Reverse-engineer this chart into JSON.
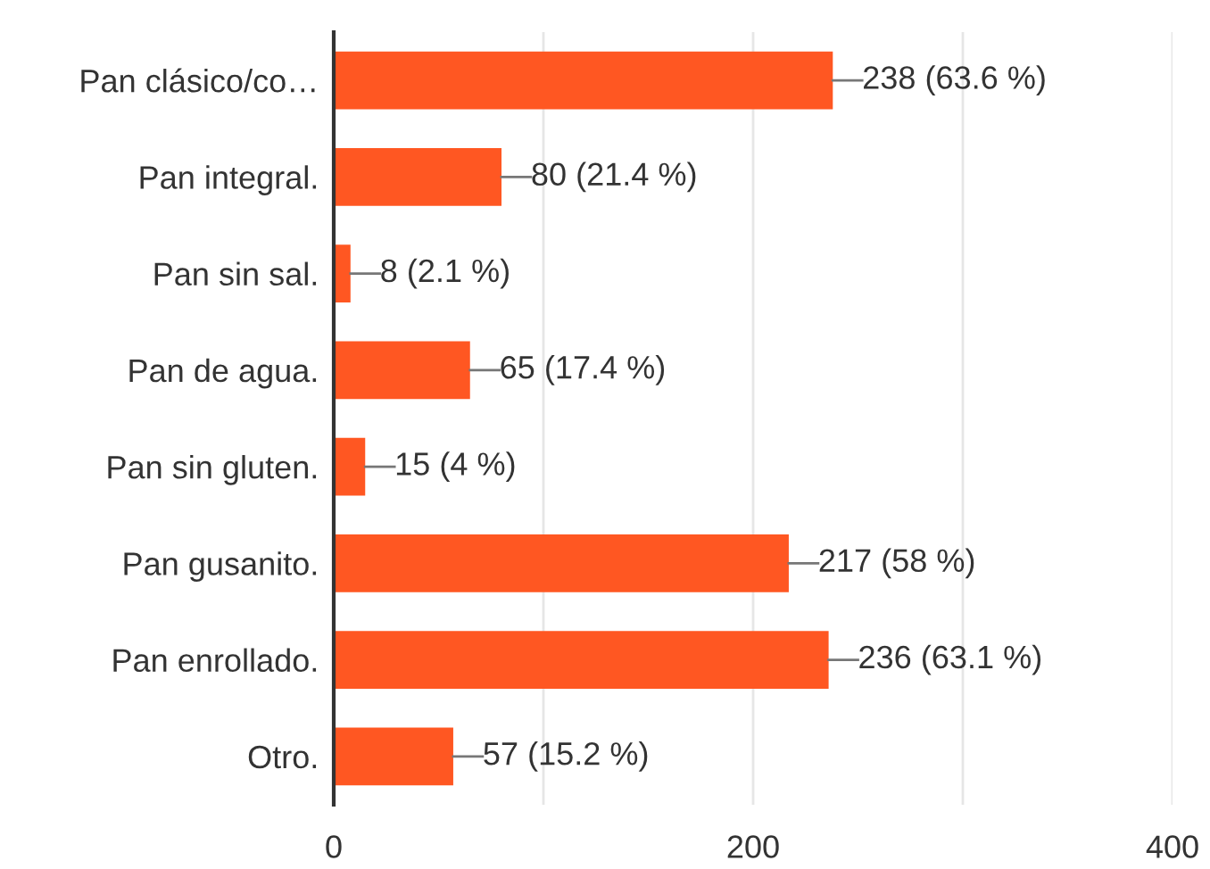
{
  "chart_data": {
    "type": "bar",
    "orientation": "horizontal",
    "categories": [
      "Pan clásico/co…",
      "Pan integral.",
      "Pan sin sal.",
      "Pan de agua.",
      "Pan sin gluten.",
      "Pan gusanito.",
      "Pan enrollado.",
      "Otro."
    ],
    "values": [
      238,
      80,
      8,
      65,
      15,
      217,
      236,
      57
    ],
    "color": "#ff5722",
    "value_labels": [
      "238 (63.6 %)",
      "80 (21.4 %)",
      "8 (2.1 %)",
      "65 (17.4 %)",
      "15 (4 %)",
      "217 (58 %)",
      "236 (63.1 %)",
      "57 (15.2 %)"
    ],
    "xlim": [
      0,
      400
    ],
    "xticks": [
      0,
      {
        "value": 100,
        "label": null
      },
      200,
      {
        "value": 300,
        "label": null
      },
      400
    ],
    "grid": "x"
  }
}
